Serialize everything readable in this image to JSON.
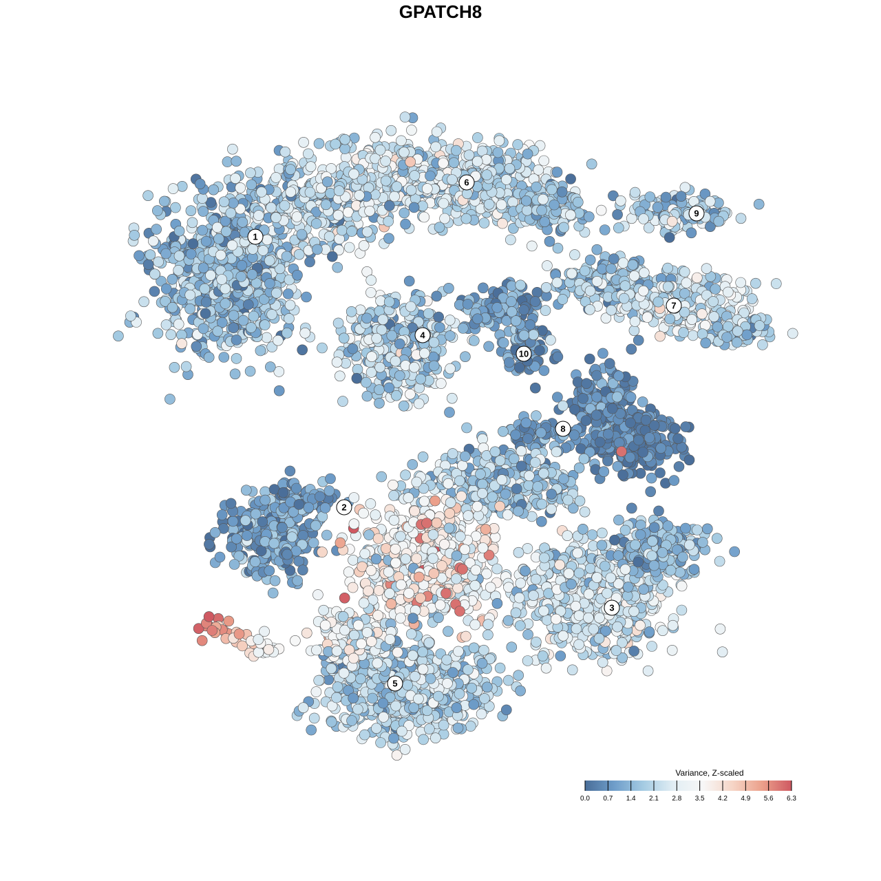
{
  "chart_data": {
    "type": "scatter",
    "title": "GPATCH8",
    "xlabel": "",
    "ylabel": "",
    "grid": false,
    "legend": {
      "title": "Variance, Z-scaled",
      "position": "bottom-right",
      "ticks": [
        "0.0",
        "0.7",
        "1.4",
        "2.1",
        "2.8",
        "3.5",
        "4.2",
        "4.9",
        "5.6",
        "6.3"
      ],
      "range": [
        0,
        6.3
      ],
      "colors": [
        "#4A6E99",
        "#6F9ECA",
        "#A6CCE3",
        "#E2EEF4",
        "#F7F7F7",
        "#F6D5C6",
        "#EBA08B",
        "#CF5962"
      ]
    },
    "clusters": [
      {
        "label": "1"
      },
      {
        "label": "2"
      },
      {
        "label": "3"
      },
      {
        "label": "4"
      },
      {
        "label": "5"
      },
      {
        "label": "6"
      },
      {
        "label": "7"
      },
      {
        "label": "8"
      },
      {
        "label": "9"
      },
      {
        "label": "10"
      }
    ]
  }
}
